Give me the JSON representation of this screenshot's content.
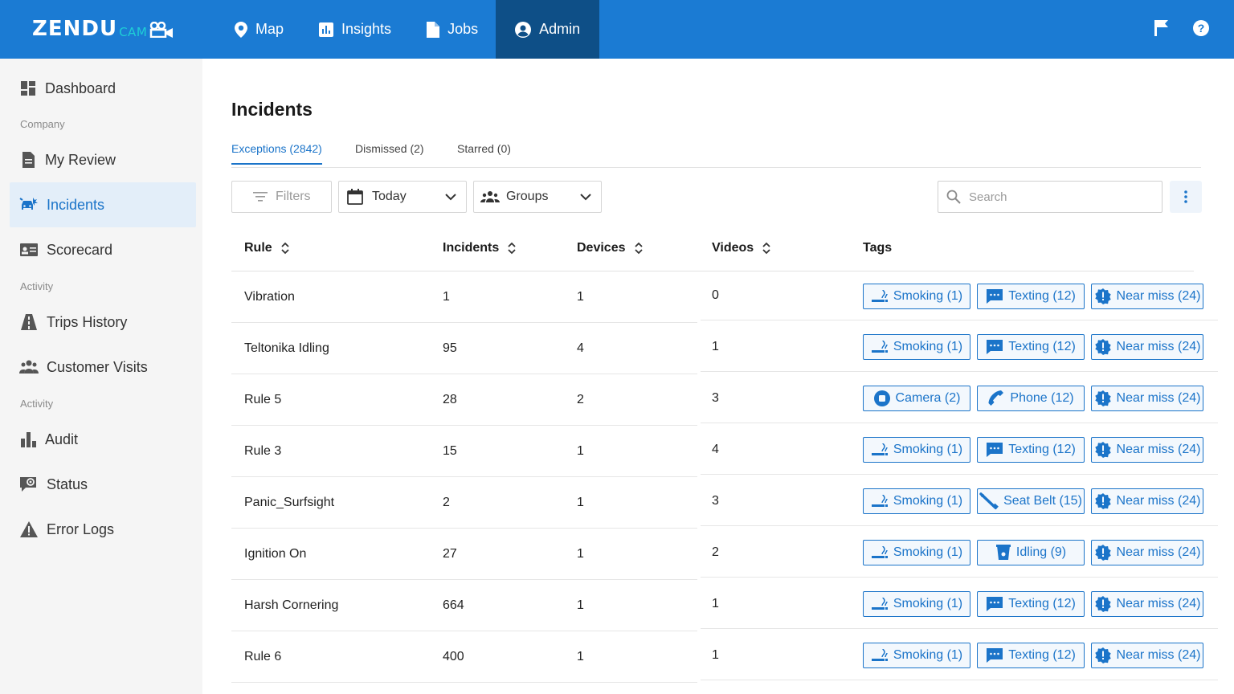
{
  "brand": {
    "main": "ZENDU",
    "sub": "CAM"
  },
  "nav": [
    {
      "label": "Map",
      "icon": "map-pin-icon"
    },
    {
      "label": "Insights",
      "icon": "insights-icon"
    },
    {
      "label": "Jobs",
      "icon": "document-icon"
    },
    {
      "label": "Admin",
      "icon": "account-circle-icon"
    }
  ],
  "sidebar": {
    "items": [
      {
        "label": "Dashboard",
        "icon": "dashboard-icon"
      },
      {
        "label": "My Review",
        "icon": "document-icon"
      },
      {
        "label": "Incidents",
        "icon": "car-crash-icon"
      },
      {
        "label": "Scorecard",
        "icon": "id-card-icon"
      },
      {
        "label": "Trips History",
        "icon": "road-icon"
      },
      {
        "label": "Customer Visits",
        "icon": "people-icon"
      },
      {
        "label": "Audit",
        "icon": "bar-chart-icon"
      },
      {
        "label": "Status",
        "icon": "status-icon"
      },
      {
        "label": "Error Logs",
        "icon": "warning-icon"
      }
    ],
    "sections": [
      "Company",
      "Activity",
      "Activity"
    ]
  },
  "page": {
    "title": "Incidents"
  },
  "tabs": [
    "Exceptions (2842)",
    "Dismissed (2)",
    "Starred (0)"
  ],
  "toolbar": {
    "filters": "Filters",
    "date": "Today",
    "groups": "Groups",
    "search_placeholder": "Search"
  },
  "table": {
    "headers": [
      "Rule",
      "Incidents",
      "Devices",
      "Videos",
      "Tags"
    ],
    "rows": [
      {
        "rule": "Vibration",
        "incidents": "1",
        "devices": "1",
        "videos": "0",
        "tags": [
          {
            "label": "Smoking (1)",
            "icon": "smoking-icon"
          },
          {
            "label": "Texting (12)",
            "icon": "message-icon"
          },
          {
            "label": "Near miss (24)",
            "icon": "alert-badge-icon"
          }
        ]
      },
      {
        "rule": "Teltonika Idling",
        "incidents": "95",
        "devices": "4",
        "videos": "1",
        "tags": [
          {
            "label": "Smoking (1)",
            "icon": "smoking-icon"
          },
          {
            "label": "Texting (12)",
            "icon": "message-icon"
          },
          {
            "label": "Near miss (24)",
            "icon": "alert-badge-icon"
          }
        ]
      },
      {
        "rule": "Rule 5",
        "incidents": "28",
        "devices": "2",
        "videos": "3",
        "tags": [
          {
            "label": "Camera (2)",
            "icon": "camera-icon"
          },
          {
            "label": "Phone (12)",
            "icon": "phone-icon"
          },
          {
            "label": "Near miss (24)",
            "icon": "alert-badge-icon"
          }
        ]
      },
      {
        "rule": "Rule 3",
        "incidents": "15",
        "devices": "1",
        "videos": "4",
        "tags": [
          {
            "label": "Smoking (1)",
            "icon": "smoking-icon"
          },
          {
            "label": "Texting (12)",
            "icon": "message-icon"
          },
          {
            "label": "Near miss (24)",
            "icon": "alert-badge-icon"
          }
        ]
      },
      {
        "rule": "Panic_Surfsight",
        "incidents": "2",
        "devices": "1",
        "videos": "3",
        "tags": [
          {
            "label": "Smoking (1)",
            "icon": "smoking-icon"
          },
          {
            "label": "Seat Belt (15)",
            "icon": "seat-belt-icon"
          },
          {
            "label": "Near miss (24)",
            "icon": "alert-badge-icon"
          }
        ]
      },
      {
        "rule": "Ignition On",
        "incidents": "27",
        "devices": "1",
        "videos": "2",
        "tags": [
          {
            "label": "Smoking (1)",
            "icon": "smoking-icon"
          },
          {
            "label": "Idling (9)",
            "icon": "idling-icon"
          },
          {
            "label": "Near miss (24)",
            "icon": "alert-badge-icon"
          }
        ]
      },
      {
        "rule": "Harsh Cornering",
        "incidents": "664",
        "devices": "1",
        "videos": "1",
        "tags": [
          {
            "label": "Smoking (1)",
            "icon": "smoking-icon"
          },
          {
            "label": "Texting (12)",
            "icon": "message-icon"
          },
          {
            "label": "Near miss (24)",
            "icon": "alert-badge-icon"
          }
        ]
      },
      {
        "rule": "Rule 6",
        "incidents": "400",
        "devices": "1",
        "videos": "1",
        "tags": [
          {
            "label": "Smoking (1)",
            "icon": "smoking-icon"
          },
          {
            "label": "Texting (12)",
            "icon": "message-icon"
          },
          {
            "label": "Near miss (24)",
            "icon": "alert-badge-icon"
          }
        ]
      }
    ]
  },
  "colors": {
    "primary": "#1b7bd3",
    "active_nav": "#0e4f87",
    "accent": "#1b74c9",
    "sidebar_bg": "#f5f5f5",
    "brand_cam": "#1ecfd6"
  }
}
